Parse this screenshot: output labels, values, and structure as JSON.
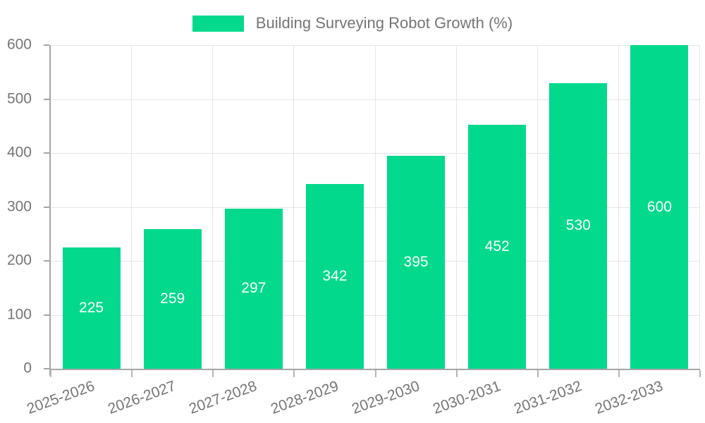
{
  "legend": {
    "label": "Building Surveying Robot Growth (%)"
  },
  "colors": {
    "bar": "#03d98c",
    "grid": "#e5e5e5",
    "axis": "#a6a6a6",
    "tick_text": "#757575",
    "value_label": "#ffffff",
    "background": "#ffffff"
  },
  "chart_data": {
    "type": "bar",
    "title": "Building Surveying Robot Growth (%)",
    "categories": [
      "2025-2026",
      "2026-2027",
      "2027-2028",
      "2028-2029",
      "2029-2030",
      "2030-2031",
      "2031-2032",
      "2032-2033"
    ],
    "values": [
      225,
      259,
      297,
      342,
      395,
      452,
      530,
      600
    ],
    "xlabel": "",
    "ylabel": "",
    "ylim": [
      0,
      600
    ],
    "yticks": [
      0,
      100,
      200,
      300,
      400,
      500,
      600
    ],
    "grid": true,
    "legend_position": "top-center",
    "bar_color": "#03d98c",
    "value_labels_inside": true,
    "x_label_rotation_deg": -20
  }
}
